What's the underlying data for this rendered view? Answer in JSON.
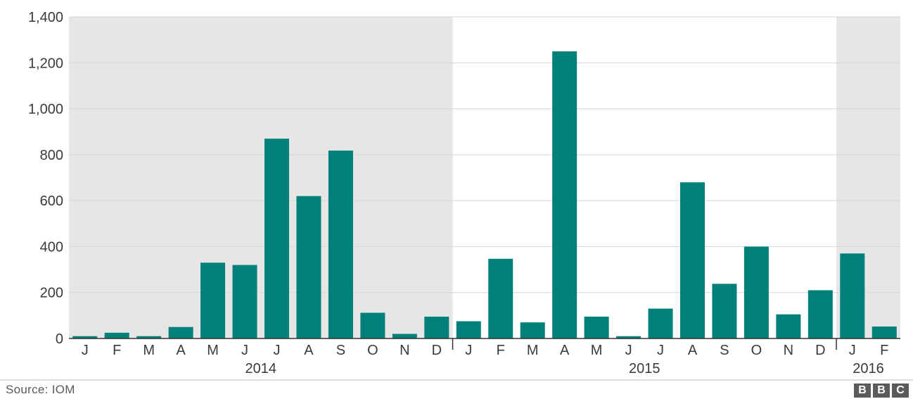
{
  "chart_data": {
    "type": "bar",
    "categories": [
      "J",
      "F",
      "M",
      "A",
      "M",
      "J",
      "J",
      "A",
      "S",
      "O",
      "N",
      "D",
      "J",
      "F",
      "M",
      "A",
      "M",
      "J",
      "J",
      "A",
      "S",
      "O",
      "N",
      "D",
      "J",
      "F"
    ],
    "values": [
      10,
      25,
      10,
      50,
      330,
      320,
      870,
      620,
      818,
      112,
      20,
      95,
      75,
      347,
      70,
      1250,
      95,
      10,
      130,
      680,
      238,
      400,
      105,
      210,
      370,
      52
    ],
    "years": [
      {
        "label": "2014",
        "start": 0,
        "end": 11,
        "shaded": true
      },
      {
        "label": "2015",
        "start": 12,
        "end": 23,
        "shaded": false
      },
      {
        "label": "2016",
        "start": 24,
        "end": 25,
        "shaded": true
      }
    ],
    "yticks": [
      "0",
      "200",
      "400",
      "600",
      "800",
      "1,000",
      "1,200",
      "1,400"
    ],
    "ylim": [
      0,
      1400
    ],
    "grid": true,
    "bar_color": "#00807b",
    "shade_color": "#e6e6e6"
  },
  "footer": {
    "source": "Source: IOM",
    "logo_letters": [
      "B",
      "B",
      "C"
    ]
  }
}
